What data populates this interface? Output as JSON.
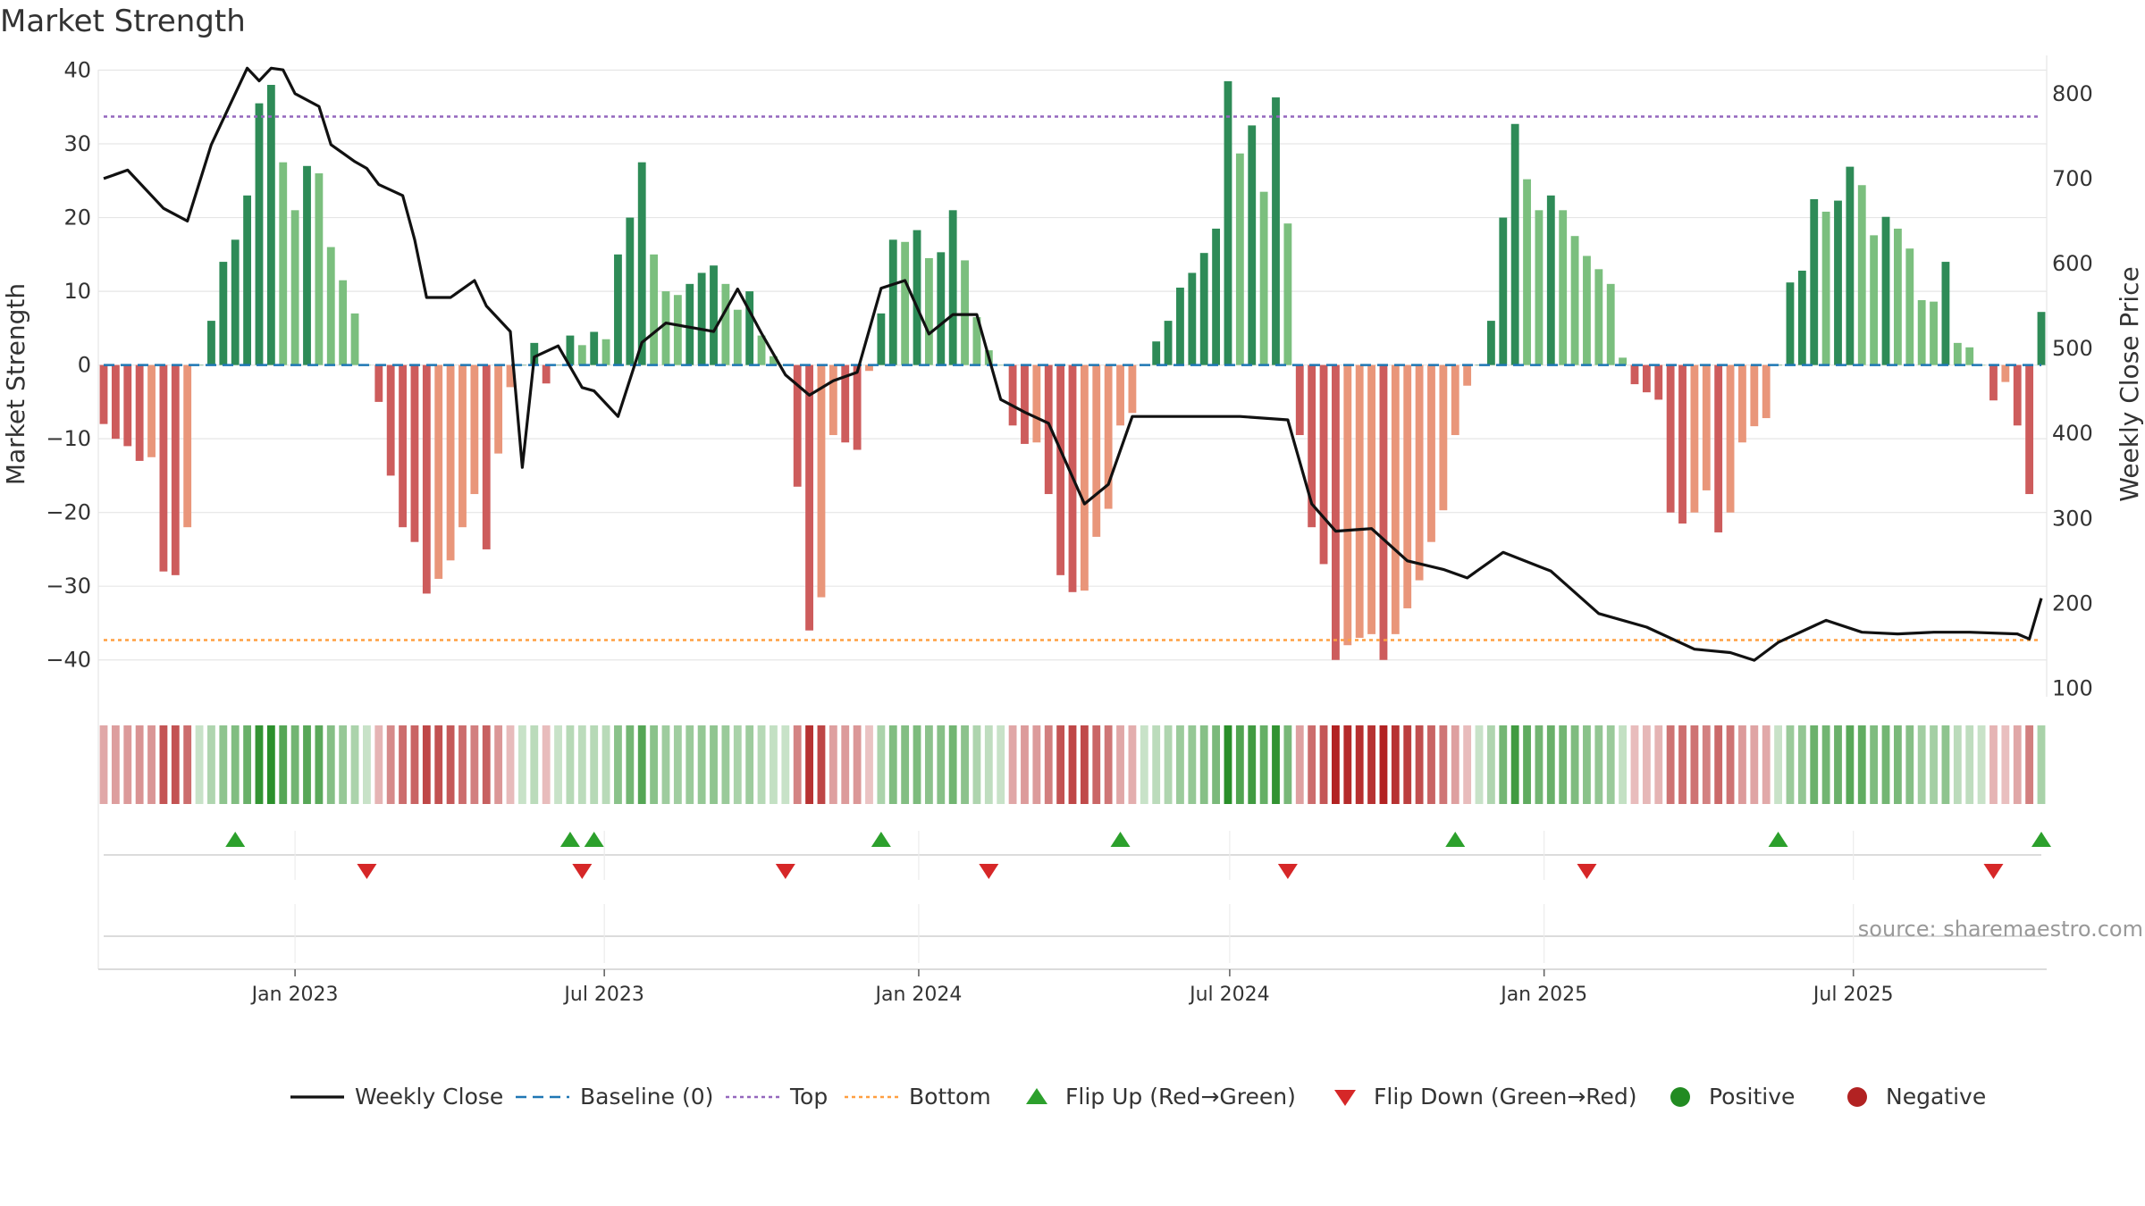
{
  "title": "Market Strength",
  "source": "source: sharemaestro.com",
  "colors": {
    "strong_green": "#2e8b57",
    "light_green": "#7bbf7e",
    "strong_red": "#cd5c5c",
    "light_red": "#e9967a",
    "close_line": "#111111",
    "baseline": "#1f77b4",
    "top": "#9467bd",
    "bottom": "#ff9f40",
    "flip_up": "#2ca02c",
    "flip_down": "#d62728",
    "positive": "#228b22",
    "negative": "#b22222"
  },
  "chart_data": [
    {
      "type": "bar",
      "ylabel": "Market Strength",
      "y2label": "Weekly Close Price",
      "ylim": [
        -45,
        42
      ],
      "y2lim": [
        90,
        845
      ],
      "yticks": [
        40,
        30,
        20,
        10,
        0,
        -10,
        -20,
        -30,
        -40
      ],
      "y2ticks": [
        800,
        700,
        600,
        500,
        400,
        300,
        200,
        100
      ],
      "x_start": "2022-09-11",
      "x_end": "2025-10-19",
      "xticks": [
        {
          "date": "2023-01-01",
          "label": "Jan 2023"
        },
        {
          "date": "2023-07-01",
          "label": "Jul 2023"
        },
        {
          "date": "2024-01-01",
          "label": "Jan 2024"
        },
        {
          "date": "2024-07-01",
          "label": "Jul 2024"
        },
        {
          "date": "2025-01-01",
          "label": "Jan 2025"
        },
        {
          "date": "2025-07-01",
          "label": "Jul 2025"
        }
      ],
      "top_line": 33.7,
      "bottom_line": -37.3,
      "baseline": 0,
      "grid": true,
      "series": [
        {
          "name": "Market Strength",
          "x": [
            "2022-09-11",
            "2022-09-18",
            "2022-09-25",
            "2022-10-02",
            "2022-10-09",
            "2022-10-16",
            "2022-10-23",
            "2022-10-30",
            "2022-11-06",
            "2022-11-13",
            "2022-11-20",
            "2022-11-27",
            "2022-12-04",
            "2022-12-11",
            "2022-12-18",
            "2022-12-25",
            "2023-01-01",
            "2023-01-08",
            "2023-01-15",
            "2023-01-22",
            "2023-01-29",
            "2023-02-05",
            "2023-02-12",
            "2023-02-19",
            "2023-02-26",
            "2023-03-05",
            "2023-03-12",
            "2023-03-19",
            "2023-03-26",
            "2023-04-02",
            "2023-04-09",
            "2023-04-16",
            "2023-04-23",
            "2023-04-30",
            "2023-05-07",
            "2023-05-14",
            "2023-05-21",
            "2023-05-28",
            "2023-06-04",
            "2023-06-11",
            "2023-06-18",
            "2023-06-25",
            "2023-07-02",
            "2023-07-09",
            "2023-07-16",
            "2023-07-23",
            "2023-07-30",
            "2023-08-06",
            "2023-08-13",
            "2023-08-20",
            "2023-08-27",
            "2023-09-03",
            "2023-09-10",
            "2023-09-17",
            "2023-09-24",
            "2023-10-01",
            "2023-10-08",
            "2023-10-15",
            "2023-10-22",
            "2023-10-29",
            "2023-11-05",
            "2023-11-12",
            "2023-11-19",
            "2023-11-26",
            "2023-12-03",
            "2023-12-10",
            "2023-12-17",
            "2023-12-24",
            "2023-12-31",
            "2024-01-07",
            "2024-01-14",
            "2024-01-21",
            "2024-01-28",
            "2024-02-04",
            "2024-02-11",
            "2024-02-18",
            "2024-02-25",
            "2024-03-03",
            "2024-03-10",
            "2024-03-17",
            "2024-03-24",
            "2024-03-31",
            "2024-04-07",
            "2024-04-14",
            "2024-04-21",
            "2024-04-28",
            "2024-05-05",
            "2024-05-12",
            "2024-05-19",
            "2024-05-26",
            "2024-06-02",
            "2024-06-09",
            "2024-06-16",
            "2024-06-23",
            "2024-06-30",
            "2024-07-07",
            "2024-07-14",
            "2024-07-21",
            "2024-07-28",
            "2024-08-04",
            "2024-08-11",
            "2024-08-18",
            "2024-08-25",
            "2024-09-01",
            "2024-09-08",
            "2024-09-15",
            "2024-09-22",
            "2024-09-29",
            "2024-10-06",
            "2024-10-13",
            "2024-10-20",
            "2024-10-27",
            "2024-11-03",
            "2024-11-10",
            "2024-11-17",
            "2024-11-24",
            "2024-12-01",
            "2024-12-08",
            "2024-12-15",
            "2024-12-22",
            "2024-12-29",
            "2025-01-05",
            "2025-01-12",
            "2025-01-19",
            "2025-01-26",
            "2025-02-02",
            "2025-02-09",
            "2025-02-16",
            "2025-02-23",
            "2025-03-02",
            "2025-03-09",
            "2025-03-16",
            "2025-03-23",
            "2025-03-30",
            "2025-04-06",
            "2025-04-13",
            "2025-04-20",
            "2025-04-27",
            "2025-05-04",
            "2025-05-11",
            "2025-05-18",
            "2025-05-25",
            "2025-06-01",
            "2025-06-08",
            "2025-06-15",
            "2025-06-22",
            "2025-06-29",
            "2025-07-06",
            "2025-07-13",
            "2025-07-20",
            "2025-07-27",
            "2025-08-03",
            "2025-08-10",
            "2025-08-17",
            "2025-08-24",
            "2025-08-31",
            "2025-09-07",
            "2025-09-14",
            "2025-09-21",
            "2025-09-28",
            "2025-10-05",
            "2025-10-12",
            "2025-10-19"
          ],
          "values": [
            -8,
            -10,
            -11,
            -13,
            -12.5,
            -28,
            -28.5,
            -22,
            0,
            6,
            14,
            17,
            23,
            35.5,
            38,
            27.5,
            21,
            27,
            26,
            16,
            11.5,
            7,
            0,
            -5,
            -15,
            -22,
            -24,
            -31,
            -29,
            -26.5,
            -22,
            -17.5,
            -25,
            -12,
            -3,
            0,
            3,
            -2.5,
            0,
            4,
            2.7,
            4.5,
            3.5,
            15,
            20,
            27.5,
            15,
            10,
            9.5,
            11,
            12.5,
            13.5,
            11,
            7.5,
            10,
            4,
            1.2,
            0,
            -16.5,
            -36,
            -31.5,
            -9.5,
            -10.5,
            -11.5,
            -0.8,
            7,
            17,
            16.7,
            18.3,
            14.5,
            15.3,
            21,
            14.2,
            6.5,
            2,
            0,
            -8.2,
            -10.7,
            -10.5,
            -17.5,
            -28.5,
            -30.8,
            -30.6,
            -23.3,
            -19.5,
            -8.2,
            -6.5,
            0,
            3.2,
            6,
            10.5,
            12.5,
            15.2,
            18.5,
            38.5,
            28.7,
            32.5,
            23.5,
            36.3,
            19.2,
            -9.5,
            -22,
            -27,
            -40,
            -38,
            -37,
            -36.5,
            -40,
            -36.5,
            -33,
            -29.2,
            -24,
            -19.7,
            -9.5,
            -2.8,
            0,
            6,
            20,
            32.7,
            25.2,
            21,
            23,
            21,
            17.5,
            14.8,
            13,
            11,
            1,
            -2.6,
            -3.7,
            -4.7,
            -20,
            -21.5,
            -20,
            -17,
            -22.7,
            -20,
            -10.5,
            -8.3,
            -7.2,
            0,
            11.2,
            12.8,
            22.5,
            20.8,
            22.3,
            26.9,
            24.4,
            17.6,
            20.1,
            18.5,
            15.8,
            8.8,
            8.6,
            14,
            3,
            2.4,
            0,
            -4.8,
            -2.3,
            -8.2,
            -17.5,
            7.2
          ]
        },
        {
          "name": "Weekly Close",
          "x": [
            "2022-09-11",
            "2022-09-25",
            "2022-10-16",
            "2022-10-30",
            "2022-11-13",
            "2022-11-27",
            "2022-12-04",
            "2022-12-11",
            "2022-12-18",
            "2022-12-25",
            "2023-01-01",
            "2023-01-15",
            "2023-01-22",
            "2023-02-05",
            "2023-02-12",
            "2023-02-19",
            "2023-03-05",
            "2023-03-12",
            "2023-03-19",
            "2023-04-02",
            "2023-04-16",
            "2023-04-23",
            "2023-05-07",
            "2023-05-14",
            "2023-05-21",
            "2023-06-04",
            "2023-06-18",
            "2023-06-25",
            "2023-07-09",
            "2023-07-23",
            "2023-08-06",
            "2023-08-20",
            "2023-09-03",
            "2023-09-17",
            "2023-10-01",
            "2023-10-15",
            "2023-10-29",
            "2023-11-12",
            "2023-11-26",
            "2023-12-10",
            "2023-12-24",
            "2024-01-07",
            "2024-01-21",
            "2024-02-04",
            "2024-02-18",
            "2024-03-03",
            "2024-03-17",
            "2024-04-07",
            "2024-04-21",
            "2024-05-05",
            "2024-06-02",
            "2024-07-07",
            "2024-08-04",
            "2024-08-18",
            "2024-09-01",
            "2024-09-22",
            "2024-10-13",
            "2024-11-03",
            "2024-11-17",
            "2024-12-08",
            "2025-01-05",
            "2025-02-02",
            "2025-03-02",
            "2025-03-30",
            "2025-04-20",
            "2025-05-04",
            "2025-05-18",
            "2025-06-15",
            "2025-07-06",
            "2025-07-27",
            "2025-08-17",
            "2025-09-07",
            "2025-10-05",
            "2025-10-12",
            "2025-10-19"
          ],
          "values": [
            700,
            710,
            665,
            650,
            740,
            800,
            830,
            815,
            830,
            828,
            800,
            785,
            740,
            720,
            712,
            693,
            680,
            628,
            560,
            560,
            580,
            550,
            520,
            360,
            490,
            503,
            454,
            450,
            420,
            507,
            530,
            525,
            520,
            570,
            518,
            469,
            445,
            462,
            472,
            571,
            580,
            517,
            540,
            540,
            440,
            425,
            412,
            317,
            340,
            420,
            420,
            420,
            416,
            317,
            285,
            288,
            250,
            240,
            230,
            260,
            238,
            188,
            172,
            146,
            142,
            133,
            154,
            180,
            166,
            164,
            166,
            166,
            164,
            158,
            206
          ]
        }
      ],
      "flip_up_dates": [
        "2022-11-27",
        "2023-06-11",
        "2023-06-25",
        "2023-12-10",
        "2024-04-28",
        "2024-11-10",
        "2025-05-18",
        "2025-10-19"
      ],
      "flip_down_dates": [
        "2023-02-12",
        "2023-06-18",
        "2023-10-15",
        "2024-02-11",
        "2024-08-04",
        "2025-01-26",
        "2025-09-21"
      ],
      "legend": {
        "position": "bottom",
        "items": [
          {
            "key": "line",
            "label": "Weekly Close"
          },
          {
            "key": "baseline",
            "label": "Baseline (0)"
          },
          {
            "key": "top",
            "label": "Top"
          },
          {
            "key": "bottom",
            "label": "Bottom"
          },
          {
            "key": "flip_up",
            "label": "Flip Up (Red→Green)"
          },
          {
            "key": "flip_down",
            "label": "Flip Down (Green→Red)"
          },
          {
            "key": "positive",
            "label": "Positive"
          },
          {
            "key": "negative",
            "label": "Negative"
          }
        ]
      }
    }
  ]
}
